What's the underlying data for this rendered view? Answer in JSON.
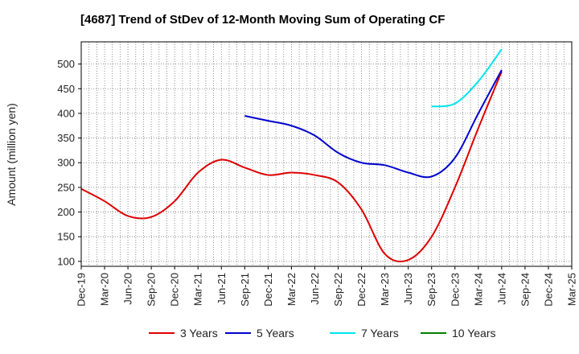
{
  "chart_data": {
    "type": "line",
    "title": "[4687]  Trend of StDev of 12-Month Moving Sum of Operating CF",
    "xlabel": "",
    "ylabel": "Amount (million yen)",
    "ylim": [
      90,
      545
    ],
    "yticks": [
      100,
      150,
      200,
      250,
      300,
      350,
      400,
      450,
      500
    ],
    "grid": true,
    "legend_position": "bottom",
    "categories": [
      "Dec-19",
      "Mar-20",
      "Jun-20",
      "Sep-20",
      "Dec-20",
      "Mar-21",
      "Jun-21",
      "Sep-21",
      "Dec-21",
      "Mar-22",
      "Jun-22",
      "Sep-22",
      "Dec-22",
      "Mar-23",
      "Jun-23",
      "Sep-23",
      "Dec-23",
      "Mar-24",
      "Jun-24",
      "Sep-24",
      "Dec-24",
      "Mar-25"
    ],
    "series": [
      {
        "name": "3 Years",
        "color": "#dd0000",
        "values": [
          247,
          222,
          192,
          190,
          222,
          280,
          306,
          290,
          275,
          280,
          275,
          260,
          205,
          115,
          103,
          150,
          250,
          370,
          485,
          null,
          null,
          null
        ]
      },
      {
        "name": "5 Years",
        "color": "#0000cc",
        "values": [
          null,
          null,
          null,
          null,
          null,
          null,
          null,
          395,
          385,
          375,
          355,
          320,
          300,
          295,
          280,
          272,
          310,
          400,
          488,
          null,
          null,
          null
        ]
      },
      {
        "name": "7 Years",
        "color": "#00e5ee",
        "values": [
          null,
          null,
          null,
          null,
          null,
          null,
          null,
          null,
          null,
          null,
          null,
          null,
          null,
          null,
          null,
          414,
          420,
          465,
          530,
          null,
          null,
          null
        ]
      },
      {
        "name": "10 Years",
        "color": "#008000",
        "values": [
          null,
          null,
          null,
          null,
          null,
          null,
          null,
          null,
          null,
          null,
          null,
          null,
          null,
          null,
          null,
          null,
          null,
          null,
          null,
          null,
          null,
          null
        ]
      }
    ]
  }
}
